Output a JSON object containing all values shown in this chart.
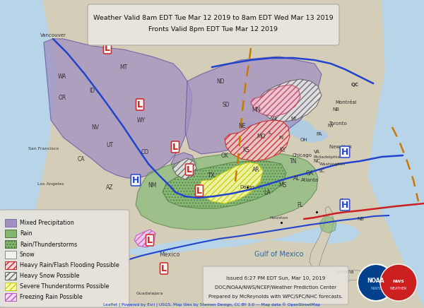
{
  "title_line1": "Weather Valid 8am EDT Tue Mar 12 2019 to 8am EDT Wed Mar 13 2019",
  "title_line2": "Fronts Valid 8pm EDT Tue Mar 12 2019",
  "background_color": "#b8d4e8",
  "land_color": "#d4cdb8",
  "title_box_color": "#e8e4dc",
  "legend_box_color": "#e8e4dc",
  "mixed_precip_color": "#a090c0",
  "rain_color": "#80b870",
  "figsize": [
    6.0,
    4.36
  ],
  "dpi": 100,
  "legend_items": [
    {
      "label": "Mixed Precipitation",
      "fc": "#a090c0",
      "ec": "#8070a8",
      "hatch": ""
    },
    {
      "label": "Rain",
      "fc": "#80b870",
      "ec": "#507840",
      "hatch": ""
    },
    {
      "label": "Rain/Thunderstorms",
      "fc": "#80b870",
      "ec": "#507840",
      "hatch": "...."
    },
    {
      "label": "Snow",
      "fc": "#f0f0f0",
      "ec": "#888888",
      "hatch": ""
    },
    {
      "label": "Heavy Rain/Flash Flooding Possible",
      "fc": "#f8d8d8",
      "ec": "#cc2020",
      "hatch": "////"
    },
    {
      "label": "Heavy Snow Possible",
      "fc": "#e8e8e8",
      "ec": "#606060",
      "hatch": "////"
    },
    {
      "label": "Severe Thunderstorms Possible",
      "fc": "#ffffaa",
      "ec": "#c8c800",
      "hatch": "////"
    },
    {
      "label": "Freezing Rain Possible",
      "fc": "#f8d8f8",
      "ec": "#c050c0",
      "hatch": "////"
    }
  ],
  "issued_text": "Issued 6:27 PM EDT Sun, Mar 10, 2019",
  "issued_text2": "DOC/NOAA/NWS/NCEP/Weather Prediction Center",
  "issued_text3": "Prepared by McReynolds with WPC/SPC/NHC forecasts.",
  "footer": "Leaflet | Powered by Esri | USGS, Map tiles by Stamen Design, CC BY 3.0 — Map data © OpenStreetMap"
}
